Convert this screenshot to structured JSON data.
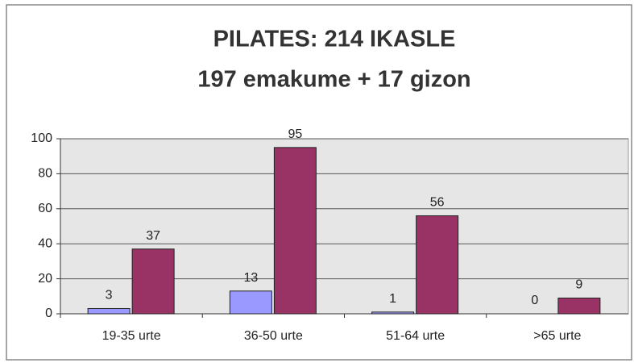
{
  "chart_data": {
    "type": "bar",
    "title": [
      "PILATES: 214 IKASLE",
      "197 emakume + 17 gizon"
    ],
    "categories": [
      "19-35 urte",
      "36-50 urte",
      "51-64 urte",
      ">65 urte"
    ],
    "series": [
      {
        "color": "#9999ff",
        "values": [
          3,
          13,
          1,
          0
        ]
      },
      {
        "color": "#993366",
        "values": [
          37,
          95,
          56,
          9
        ]
      }
    ],
    "ylim": [
      0,
      100
    ],
    "yticks": [
      0,
      20,
      40,
      60,
      80,
      100
    ],
    "grid": true
  }
}
